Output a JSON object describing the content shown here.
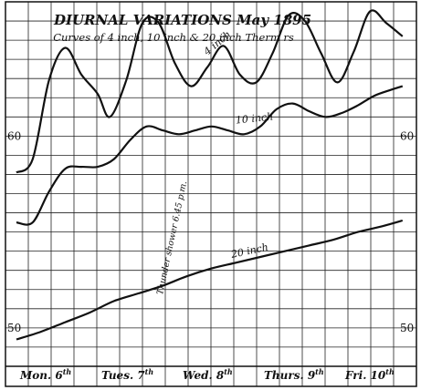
{
  "chart_data": {
    "type": "line",
    "title": "DIURNAL VARIATIONS May 1895",
    "subtitle": "Curves of 4 inch, 10 inch & 20 inch Therm rs",
    "x_unit": "day",
    "xlim": [
      0,
      5
    ],
    "ylim": [
      48,
      67
    ],
    "y_tick_labels": [
      {
        "value": 60,
        "text": "60",
        "sides": [
          "left",
          "right"
        ]
      },
      {
        "value": 50,
        "text": "50",
        "sides": [
          "left",
          "right"
        ]
      }
    ],
    "days": [
      "Mon. 6",
      "Tues. 7",
      "Wed. 8",
      "Thurs. 9",
      "Fri. 10"
    ],
    "days_sup": "th",
    "grid": true,
    "series": [
      {
        "name": "4 inch",
        "points": [
          [
            0.0,
            58.1
          ],
          [
            0.2,
            58.8
          ],
          [
            0.4,
            62.9
          ],
          [
            0.6,
            64.6
          ],
          [
            0.8,
            63.2
          ],
          [
            1.0,
            62.2
          ],
          [
            1.15,
            61.0
          ],
          [
            1.35,
            62.9
          ],
          [
            1.55,
            65.9
          ],
          [
            1.75,
            65.9
          ],
          [
            1.95,
            63.8
          ],
          [
            2.15,
            62.6
          ],
          [
            2.35,
            63.6
          ],
          [
            2.55,
            64.7
          ],
          [
            2.75,
            63.2
          ],
          [
            2.95,
            62.8
          ],
          [
            3.15,
            64.3
          ],
          [
            3.35,
            66.3
          ],
          [
            3.55,
            66.0
          ],
          [
            3.75,
            64.3
          ],
          [
            3.95,
            62.8
          ],
          [
            4.15,
            64.4
          ],
          [
            4.35,
            66.5
          ],
          [
            4.55,
            65.9
          ],
          [
            4.75,
            65.2
          ]
        ]
      },
      {
        "name": "10 inch",
        "points": [
          [
            0.0,
            55.5
          ],
          [
            0.2,
            55.5
          ],
          [
            0.4,
            57.1
          ],
          [
            0.6,
            58.3
          ],
          [
            0.8,
            58.4
          ],
          [
            1.0,
            58.4
          ],
          [
            1.2,
            58.8
          ],
          [
            1.4,
            59.8
          ],
          [
            1.6,
            60.5
          ],
          [
            1.8,
            60.3
          ],
          [
            2.0,
            60.1
          ],
          [
            2.2,
            60.3
          ],
          [
            2.4,
            60.5
          ],
          [
            2.6,
            60.3
          ],
          [
            2.8,
            60.1
          ],
          [
            3.0,
            60.5
          ],
          [
            3.2,
            61.4
          ],
          [
            3.4,
            61.7
          ],
          [
            3.6,
            61.3
          ],
          [
            3.8,
            61.0
          ],
          [
            4.0,
            61.2
          ],
          [
            4.2,
            61.6
          ],
          [
            4.4,
            62.1
          ],
          [
            4.6,
            62.4
          ],
          [
            4.75,
            62.6
          ]
        ]
      },
      {
        "name": "20 inch",
        "points": [
          [
            0.0,
            49.4
          ],
          [
            0.3,
            49.8
          ],
          [
            0.6,
            50.3
          ],
          [
            0.9,
            50.8
          ],
          [
            1.2,
            51.4
          ],
          [
            1.5,
            51.8
          ],
          [
            1.8,
            52.2
          ],
          [
            2.1,
            52.7
          ],
          [
            2.4,
            53.1
          ],
          [
            2.7,
            53.4
          ],
          [
            3.0,
            53.7
          ],
          [
            3.3,
            54.0
          ],
          [
            3.6,
            54.3
          ],
          [
            3.9,
            54.6
          ],
          [
            4.2,
            55.0
          ],
          [
            4.5,
            55.3
          ],
          [
            4.75,
            55.6
          ]
        ]
      }
    ],
    "annotation": {
      "text": "Thunder shower 6.45 p.m.",
      "x": 1.1,
      "y": 58.6
    }
  }
}
